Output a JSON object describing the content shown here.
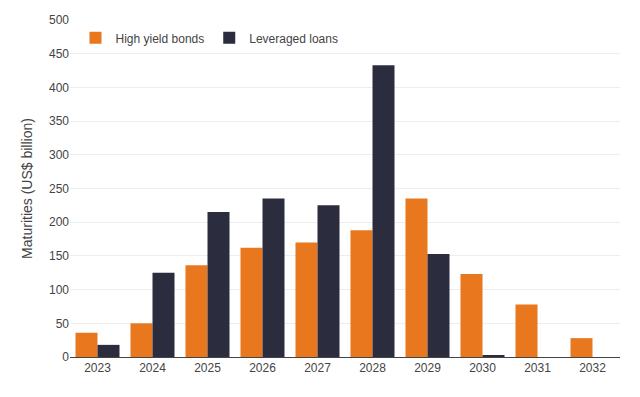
{
  "chart_data": {
    "type": "bar",
    "categories": [
      "2023",
      "2024",
      "2025",
      "2026",
      "2027",
      "2028",
      "2029",
      "2030",
      "2031",
      "2032"
    ],
    "series": [
      {
        "name": "High yield bonds",
        "color": "#E8771E",
        "values": [
          36,
          50,
          136,
          162,
          170,
          188,
          235,
          123,
          78,
          28
        ]
      },
      {
        "name": "Leveraged loans",
        "color": "#2B2D3E",
        "values": [
          18,
          125,
          215,
          235,
          225,
          433,
          153,
          2,
          0,
          0
        ]
      }
    ],
    "ylabel": "Maturities (US$ billion)",
    "ylim": [
      0,
      500
    ],
    "yticks": [
      0,
      50,
      100,
      150,
      200,
      250,
      300,
      350,
      400,
      450,
      500
    ],
    "grid": true,
    "legend": "upper left"
  }
}
